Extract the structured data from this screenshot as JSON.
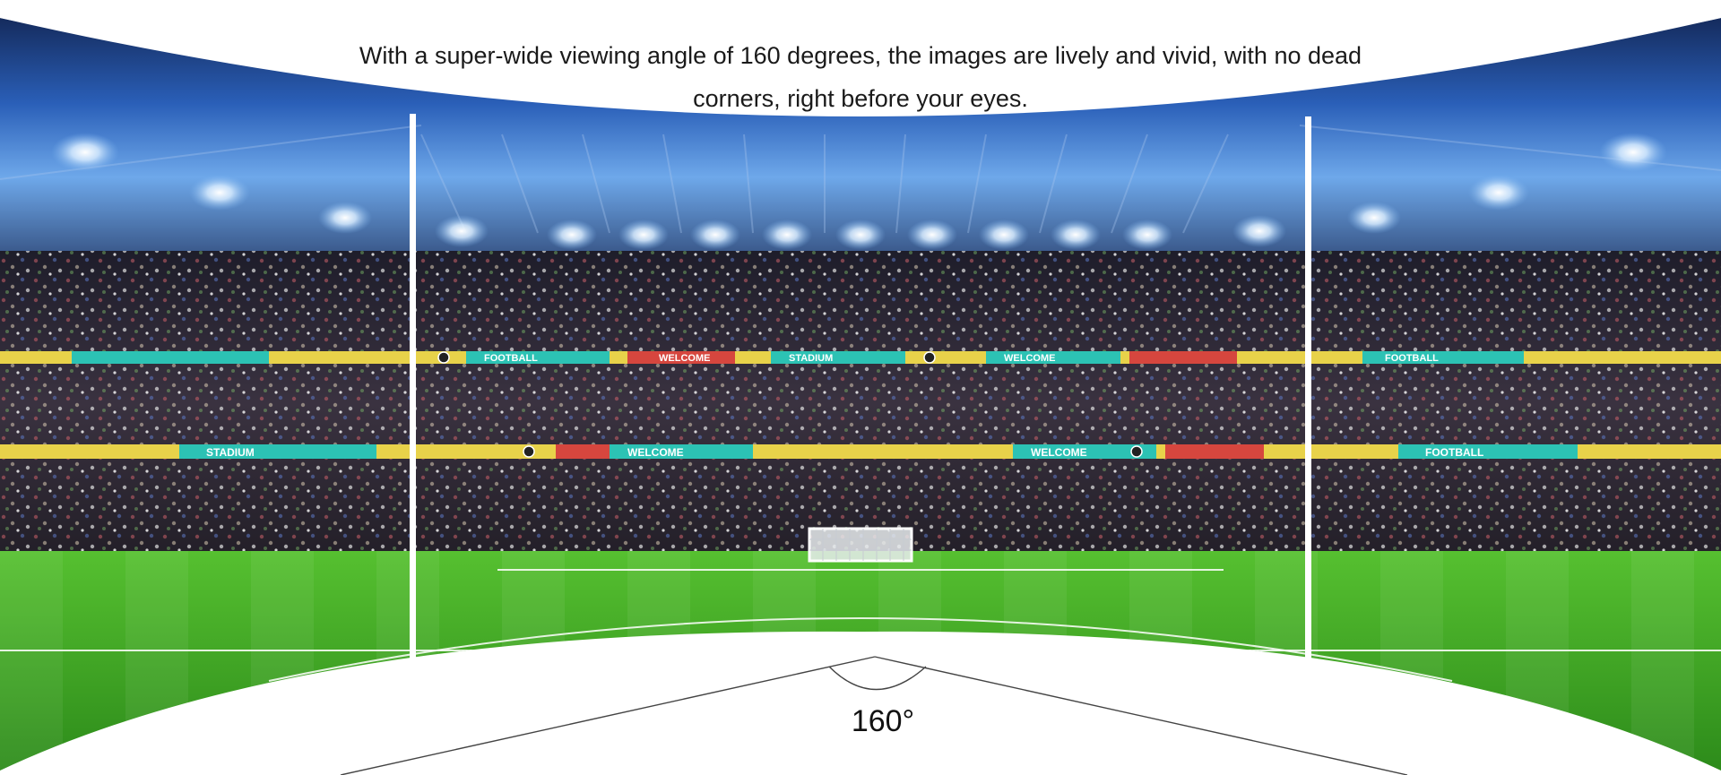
{
  "headline": "With a super-wide viewing angle of 160 degrees, the images are lively and vivid, with no dead corners, right before your eyes.",
  "angle_label": "160°",
  "banner_words": [
    "WELCOME",
    "FOOTBALL",
    "STADIUM"
  ],
  "colors": {
    "background": "#ffffff",
    "sky_top": "#1b3d8a",
    "sky_glow": "#7fb6f0",
    "crowd": "#2a2630",
    "grass_light": "#5ecb34",
    "grass_dark": "#2f8d1c",
    "banner_teal": "#2cc2b4",
    "banner_yellow": "#e8d24a",
    "banner_red": "#d6463e",
    "divider": "#ffffff",
    "angle_lines": "#444444"
  },
  "icons": {
    "floodlight": "floodlight-icon",
    "goal": "goal-icon",
    "ball": "football-icon"
  }
}
